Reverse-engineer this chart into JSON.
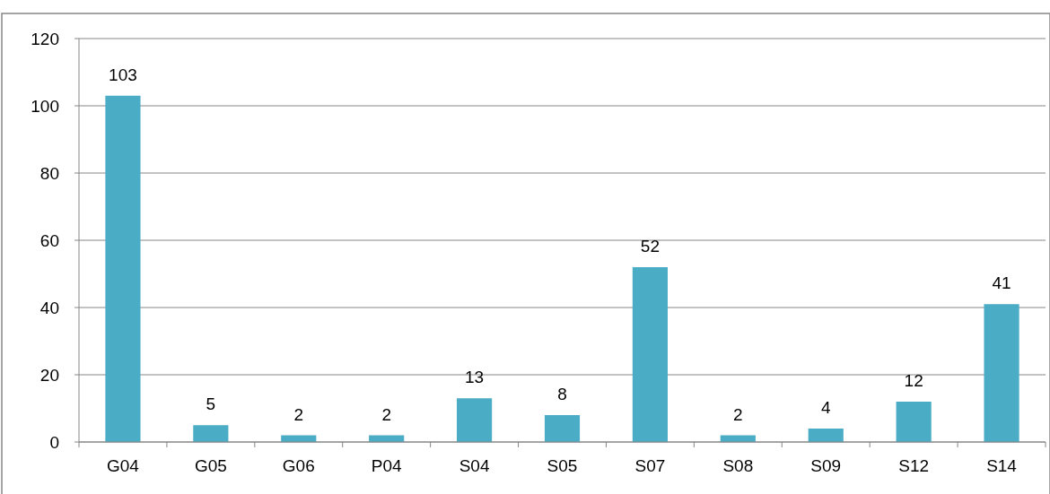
{
  "chart_data": {
    "type": "bar",
    "categories": [
      "G04",
      "G05",
      "G06",
      "P04",
      "S04",
      "S05",
      "S07",
      "S08",
      "S09",
      "S12",
      "S14"
    ],
    "values": [
      103,
      5,
      2,
      2,
      13,
      8,
      52,
      2,
      4,
      12,
      41
    ],
    "color": "#4bacc6",
    "ylim": [
      0,
      120
    ],
    "yticks": [
      0,
      20,
      40,
      60,
      80,
      100,
      120
    ],
    "grid": "y",
    "data_labels": true
  }
}
